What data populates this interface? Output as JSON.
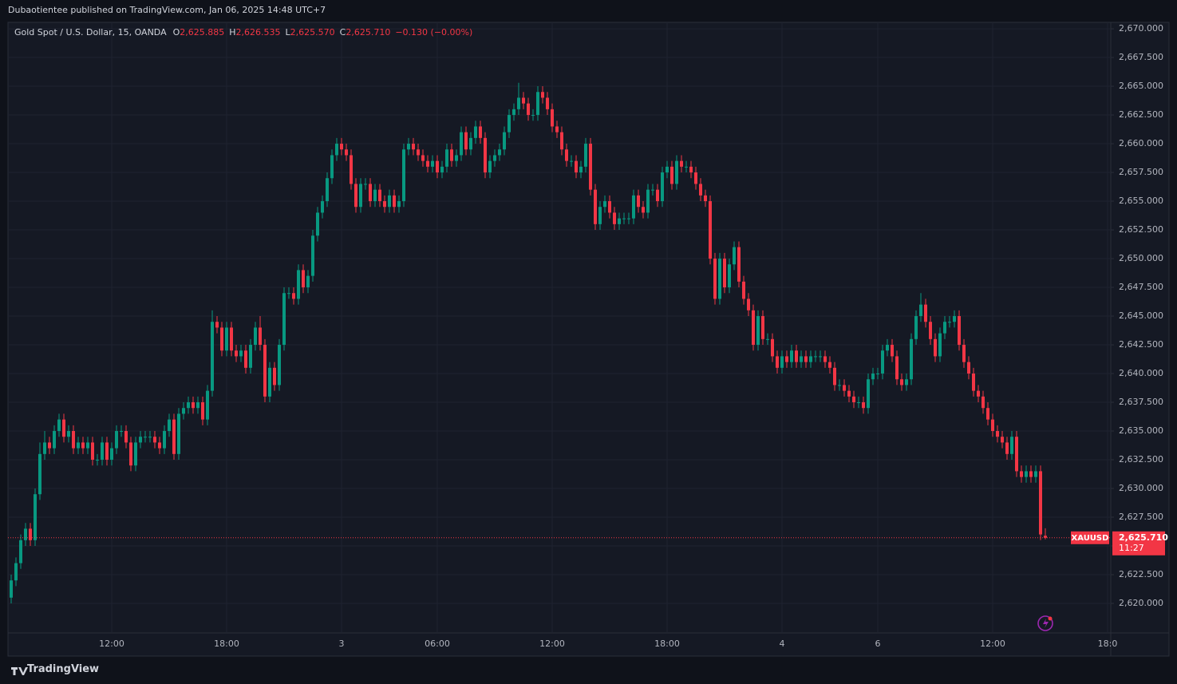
{
  "header": {
    "publisher": "Dubaotientee published on TradingView.com, Jan 06, 2025 14:48 UTC+7"
  },
  "chart_data": {
    "type": "candlestick",
    "title": "Gold Spot / U.S. Dollar, 15, OANDA",
    "ohlc_legend": [
      {
        "key": "O",
        "value": "2,625.885"
      },
      {
        "key": "H",
        "value": "2,626.535"
      },
      {
        "key": "L",
        "value": "2,625.570"
      },
      {
        "key": "C",
        "value": "2,625.710"
      }
    ],
    "change": "−0.130 (−0.00%)",
    "categories": [
      null,
      null,
      null,
      null,
      null,
      null,
      null,
      null,
      null,
      null,
      null,
      null,
      null,
      null,
      null,
      null,
      null,
      null,
      null,
      null,
      null,
      "12:00",
      null,
      null,
      null,
      null,
      null,
      null,
      null,
      null,
      null,
      null,
      null,
      null,
      null,
      null,
      null,
      null,
      null,
      null,
      null,
      null,
      null,
      null,
      null,
      "18:00",
      null,
      null,
      null,
      null,
      null,
      null,
      null,
      null,
      null,
      null,
      null,
      null,
      null,
      null,
      null,
      null,
      null,
      null,
      null,
      null,
      null,
      null,
      null,
      "3",
      null,
      null,
      null,
      null,
      null,
      null,
      null,
      null,
      null,
      null,
      null,
      null,
      null,
      null,
      null,
      null,
      null,
      null,
      null,
      "06:00",
      null,
      null,
      null,
      null,
      null,
      null,
      null,
      null,
      null,
      null,
      null,
      null,
      null,
      null,
      null,
      null,
      null,
      null,
      null,
      null,
      null,
      null,
      null,
      "12:00",
      null,
      null,
      null,
      null,
      null,
      null,
      null,
      null,
      null,
      null,
      null,
      null,
      null,
      null,
      null,
      null,
      null,
      null,
      null,
      null,
      null,
      null,
      null,
      "18:00",
      null,
      null,
      null,
      null,
      null,
      null,
      null,
      null,
      null,
      null,
      null,
      null,
      null,
      null,
      null,
      null,
      null,
      null,
      null,
      null,
      null,
      null,
      null,
      "4",
      null,
      null,
      null,
      null,
      null,
      null,
      null,
      null,
      null,
      null,
      null,
      null,
      null,
      null,
      null,
      null,
      null,
      null,
      null,
      "6",
      null,
      null,
      null,
      null,
      null,
      null,
      null,
      null,
      null,
      null,
      null,
      null,
      null,
      null,
      null,
      null,
      null,
      null,
      null,
      null,
      null,
      null,
      null,
      "12:00",
      null,
      null,
      null,
      null,
      null,
      null,
      null,
      null,
      null,
      null,
      null,
      null,
      null,
      null,
      null,
      null,
      null,
      null,
      null,
      null,
      null,
      null,
      null,
      "18:0"
    ],
    "open": [
      2620.5,
      2622.0,
      2623.5,
      2625.5,
      2626.5,
      2625.5,
      2629.5,
      2633.0,
      2634.0,
      2633.5,
      2635.0,
      2636.0,
      2634.5,
      2635.0,
      2633.5,
      2634.0,
      2633.5,
      2634.0,
      2632.5,
      2632.5,
      2634.0,
      2632.5,
      2633.5,
      2635.0,
      2635.0,
      2634.0,
      2632.0,
      2634.0,
      2634.5,
      2634.5,
      2634.5,
      2634.0,
      2633.5,
      2635.0,
      2636.0,
      2633.0,
      2636.5,
      2637.0,
      2637.5,
      2637.0,
      2637.5,
      2636.0,
      2638.5,
      2644.5,
      2644.0,
      2642.0,
      2644.0,
      2642.0,
      2641.5,
      2642.0,
      2640.5,
      2642.5,
      2644.0,
      2642.5,
      2638.0,
      2640.5,
      2639.0,
      2642.5,
      2647.0,
      2647.0,
      2646.5,
      2649.0,
      2647.5,
      2648.5,
      2652.0,
      2654.0,
      2655.0,
      2657.0,
      2659.0,
      2660.0,
      2659.5,
      2659.0,
      2656.5,
      2654.5,
      2656.5,
      2656.5,
      2655.0,
      2656.0,
      2655.0,
      2654.5,
      2655.5,
      2654.5,
      2655.0,
      2659.5,
      2660.0,
      2659.5,
      2659.0,
      2658.5,
      2658.0,
      2658.5,
      2657.5,
      2658.0,
      2659.5,
      2658.5,
      2659.0,
      2661.0,
      2659.5,
      2660.5,
      2661.5,
      2660.5,
      2657.5,
      2658.5,
      2659.0,
      2659.5,
      2661.0,
      2662.5,
      2663.0,
      2664.0,
      2663.5,
      2662.5,
      2662.5,
      2664.5,
      2664.0,
      2663.0,
      2661.5,
      2661.0,
      2659.5,
      2658.5,
      2658.5,
      2657.5,
      2658.0,
      2660.0,
      2656.0,
      2653.0,
      2654.5,
      2655.0,
      2654.0,
      2653.0,
      2653.5,
      2653.5,
      2653.5,
      2655.5,
      2654.5,
      2654.0,
      2656.0,
      2656.0,
      2655.0,
      2657.5,
      2658.0,
      2656.5,
      2658.5,
      2658.0,
      2658.0,
      2657.5,
      2656.5,
      2655.5,
      2655.0,
      2650.0,
      2646.5,
      2650.0,
      2647.5,
      2649.5,
      2651.0,
      2648.0,
      2646.5,
      2645.5,
      2642.5,
      2645.0,
      2643.0,
      2643.0,
      2641.5,
      2640.5,
      2641.5,
      2641.0,
      2642.0,
      2641.0,
      2641.5,
      2641.0,
      2641.5,
      2641.5,
      2641.5,
      2641.0,
      2640.5,
      2639.0,
      2639.0,
      2638.5,
      2638.0,
      2637.5,
      2637.5,
      2637.0,
      2639.5,
      2640.0,
      2640.0,
      2642.0,
      2642.5,
      2641.5,
      2639.5,
      2639.0,
      2639.5,
      2643.0,
      2645.0,
      2646.0,
      2644.5,
      2643.0,
      2641.5,
      2643.5,
      2644.5,
      2644.5,
      2645.0,
      2642.5,
      2641.0,
      2640.0,
      2638.5,
      2638.0,
      2637.0,
      2636.0,
      2635.0,
      2634.5,
      2634.0,
      2633.0,
      2634.5,
      2631.5,
      2631.0,
      2631.5,
      2631.0,
      2631.5,
      2625.885,
      null,
      null,
      null,
      null,
      null,
      null,
      null,
      null,
      null,
      null,
      null,
      null,
      null
    ],
    "high": [
      2622.5,
      2624.0,
      2626.0,
      2627.0,
      2627.0,
      2630.0,
      2634.0,
      2635.0,
      2634.5,
      2635.5,
      2636.5,
      2636.5,
      2635.5,
      2635.5,
      2634.5,
      2634.5,
      2634.5,
      2634.5,
      2633.0,
      2634.5,
      2634.5,
      2634.0,
      2635.5,
      2635.5,
      2635.5,
      2634.5,
      2634.5,
      2635.0,
      2635.0,
      2635.0,
      2635.0,
      2634.5,
      2635.5,
      2636.5,
      2636.5,
      2637.0,
      2637.5,
      2638.0,
      2638.0,
      2638.0,
      2638.0,
      2639.0,
      2645.5,
      2645.0,
      2644.5,
      2644.5,
      2644.5,
      2642.5,
      2642.5,
      2642.5,
      2643.0,
      2644.5,
      2645.0,
      2643.0,
      2641.0,
      2641.0,
      2643.0,
      2647.5,
      2647.5,
      2647.5,
      2649.5,
      2649.5,
      2649.0,
      2652.5,
      2654.5,
      2655.5,
      2657.5,
      2659.5,
      2660.5,
      2660.5,
      2660.0,
      2659.5,
      2657.0,
      2657.0,
      2657.0,
      2657.0,
      2656.5,
      2656.5,
      2655.5,
      2656.0,
      2656.0,
      2655.5,
      2660.0,
      2660.5,
      2660.5,
      2660.0,
      2659.5,
      2659.0,
      2659.0,
      2659.0,
      2658.5,
      2660.0,
      2660.0,
      2659.5,
      2661.5,
      2661.5,
      2661.0,
      2662.0,
      2662.0,
      2661.0,
      2659.0,
      2659.5,
      2660.0,
      2661.5,
      2663.0,
      2663.5,
      2665.3,
      2664.5,
      2664.0,
      2663.0,
      2665.0,
      2665.0,
      2664.5,
      2663.5,
      2662.0,
      2661.5,
      2660.0,
      2659.0,
      2659.0,
      2658.5,
      2660.5,
      2660.5,
      2656.5,
      2655.0,
      2655.5,
      2655.5,
      2654.5,
      2654.0,
      2654.0,
      2654.0,
      2656.0,
      2656.0,
      2655.0,
      2656.5,
      2656.5,
      2656.5,
      2658.0,
      2658.5,
      2658.5,
      2659.0,
      2659.0,
      2658.5,
      2658.5,
      2658.0,
      2657.0,
      2656.0,
      2655.5,
      2650.5,
      2650.5,
      2650.5,
      2650.0,
      2651.5,
      2651.5,
      2648.5,
      2647.0,
      2646.0,
      2645.5,
      2645.5,
      2643.5,
      2643.5,
      2642.0,
      2642.0,
      2642.0,
      2642.5,
      2642.5,
      2642.0,
      2642.0,
      2642.0,
      2642.0,
      2642.0,
      2642.0,
      2641.5,
      2641.0,
      2639.5,
      2639.5,
      2639.0,
      2638.5,
      2638.0,
      2638.0,
      2640.0,
      2640.5,
      2640.5,
      2642.5,
      2643.0,
      2643.0,
      2642.0,
      2640.0,
      2640.0,
      2643.5,
      2645.5,
      2647.0,
      2646.5,
      2645.0,
      2643.5,
      2644.0,
      2645.0,
      2645.0,
      2645.5,
      2645.5,
      2643.0,
      2641.5,
      2640.5,
      2639.0,
      2638.5,
      2637.5,
      2636.5,
      2635.5,
      2635.0,
      2634.5,
      2635.0,
      2635.0,
      2632.0,
      2632.0,
      2632.0,
      2632.0,
      2632.0,
      2626.535,
      null,
      null,
      null,
      null,
      null,
      null,
      null,
      null,
      null,
      null,
      null,
      null,
      null
    ],
    "low": [
      2620.0,
      2621.5,
      2623.0,
      2625.0,
      2625.0,
      2625.0,
      2629.0,
      2632.5,
      2633.0,
      2633.0,
      2634.5,
      2634.0,
      2634.0,
      2633.0,
      2633.0,
      2633.0,
      2633.0,
      2632.0,
      2632.0,
      2632.0,
      2632.0,
      2632.0,
      2633.0,
      2634.5,
      2633.5,
      2631.5,
      2631.5,
      2633.5,
      2634.0,
      2634.0,
      2633.5,
      2633.0,
      2633.0,
      2634.5,
      2632.5,
      2632.5,
      2636.0,
      2636.5,
      2636.5,
      2636.5,
      2635.5,
      2635.5,
      2638.0,
      2643.5,
      2641.5,
      2641.5,
      2641.5,
      2641.0,
      2641.0,
      2640.0,
      2640.0,
      2642.0,
      2642.0,
      2637.5,
      2637.5,
      2638.5,
      2638.5,
      2642.0,
      2646.5,
      2646.0,
      2646.0,
      2647.0,
      2647.0,
      2648.0,
      2651.5,
      2653.5,
      2654.5,
      2656.5,
      2658.5,
      2659.0,
      2658.5,
      2656.0,
      2654.0,
      2654.0,
      2656.0,
      2654.5,
      2654.5,
      2654.5,
      2654.0,
      2654.0,
      2654.0,
      2654.0,
      2654.5,
      2659.0,
      2659.0,
      2658.5,
      2658.0,
      2657.5,
      2657.5,
      2657.0,
      2657.0,
      2657.5,
      2658.0,
      2658.0,
      2658.5,
      2659.0,
      2659.0,
      2660.0,
      2660.0,
      2657.0,
      2657.0,
      2658.0,
      2658.5,
      2659.0,
      2660.5,
      2662.0,
      2662.5,
      2663.0,
      2662.0,
      2662.0,
      2662.0,
      2663.5,
      2662.5,
      2661.0,
      2660.5,
      2659.0,
      2658.0,
      2658.0,
      2657.0,
      2657.0,
      2657.5,
      2655.5,
      2652.5,
      2652.5,
      2654.0,
      2653.5,
      2652.5,
      2652.5,
      2653.0,
      2653.0,
      2653.0,
      2654.0,
      2653.5,
      2653.5,
      2655.5,
      2654.5,
      2654.5,
      2657.0,
      2656.0,
      2656.0,
      2657.5,
      2657.5,
      2657.0,
      2656.0,
      2655.0,
      2654.5,
      2649.5,
      2646.0,
      2646.0,
      2647.0,
      2647.0,
      2649.0,
      2647.5,
      2646.0,
      2645.0,
      2642.0,
      2642.0,
      2642.5,
      2642.5,
      2641.0,
      2640.0,
      2640.0,
      2640.5,
      2640.5,
      2640.5,
      2640.5,
      2640.5,
      2640.5,
      2641.0,
      2641.0,
      2640.5,
      2640.0,
      2638.5,
      2638.5,
      2638.0,
      2637.5,
      2637.0,
      2637.0,
      2636.5,
      2636.5,
      2639.0,
      2639.5,
      2639.5,
      2641.5,
      2641.0,
      2639.0,
      2638.5,
      2638.5,
      2639.0,
      2642.5,
      2644.5,
      2644.0,
      2642.5,
      2641.0,
      2641.0,
      2643.0,
      2644.0,
      2644.0,
      2642.0,
      2640.5,
      2639.5,
      2638.0,
      2637.5,
      2636.5,
      2635.5,
      2634.5,
      2634.0,
      2633.5,
      2632.5,
      2632.5,
      2631.0,
      2630.5,
      2630.5,
      2630.5,
      2630.5,
      2625.5,
      2625.57,
      null,
      null,
      null,
      null,
      null,
      null,
      null,
      null,
      null,
      null,
      null,
      null,
      null
    ],
    "close": [
      2622.0,
      2623.5,
      2625.5,
      2626.5,
      2625.5,
      2629.5,
      2633.0,
      2634.0,
      2633.5,
      2635.0,
      2636.0,
      2634.5,
      2635.0,
      2633.5,
      2634.0,
      2633.5,
      2634.0,
      2632.5,
      2632.5,
      2634.0,
      2632.5,
      2633.5,
      2635.0,
      2635.0,
      2634.0,
      2632.0,
      2634.0,
      2634.5,
      2634.5,
      2634.5,
      2634.0,
      2633.5,
      2635.0,
      2636.0,
      2633.0,
      2636.5,
      2637.0,
      2637.5,
      2637.0,
      2637.5,
      2636.0,
      2638.5,
      2644.5,
      2644.0,
      2642.0,
      2644.0,
      2642.0,
      2641.5,
      2642.0,
      2640.5,
      2642.5,
      2644.0,
      2642.5,
      2638.0,
      2640.5,
      2639.0,
      2642.5,
      2647.0,
      2647.0,
      2646.5,
      2649.0,
      2647.5,
      2648.5,
      2652.0,
      2654.0,
      2655.0,
      2657.0,
      2659.0,
      2660.0,
      2659.5,
      2659.0,
      2656.5,
      2654.5,
      2656.5,
      2656.5,
      2655.0,
      2656.0,
      2655.0,
      2654.5,
      2655.5,
      2654.5,
      2655.0,
      2659.5,
      2660.0,
      2659.5,
      2659.0,
      2658.5,
      2658.0,
      2658.5,
      2657.5,
      2658.0,
      2659.5,
      2658.5,
      2659.0,
      2661.0,
      2659.5,
      2660.5,
      2661.5,
      2660.5,
      2657.5,
      2658.5,
      2659.0,
      2659.5,
      2661.0,
      2662.5,
      2663.0,
      2664.0,
      2663.5,
      2662.5,
      2662.5,
      2664.5,
      2664.0,
      2663.0,
      2661.5,
      2661.0,
      2659.5,
      2658.5,
      2658.5,
      2657.5,
      2658.0,
      2660.0,
      2656.0,
      2653.0,
      2654.5,
      2655.0,
      2654.0,
      2653.0,
      2653.5,
      2653.5,
      2653.5,
      2655.5,
      2654.5,
      2654.0,
      2656.0,
      2656.0,
      2655.0,
      2657.5,
      2658.0,
      2656.5,
      2658.5,
      2658.0,
      2658.0,
      2657.5,
      2656.5,
      2655.5,
      2655.0,
      2650.0,
      2646.5,
      2650.0,
      2647.5,
      2649.5,
      2651.0,
      2648.0,
      2646.5,
      2645.5,
      2642.5,
      2645.0,
      2643.0,
      2643.0,
      2641.5,
      2640.5,
      2641.5,
      2641.0,
      2642.0,
      2641.0,
      2641.5,
      2641.0,
      2641.5,
      2641.5,
      2641.5,
      2641.0,
      2640.5,
      2639.0,
      2639.0,
      2638.5,
      2638.0,
      2637.5,
      2637.5,
      2637.0,
      2639.5,
      2640.0,
      2640.0,
      2642.0,
      2642.5,
      2641.5,
      2639.5,
      2639.0,
      2639.5,
      2643.0,
      2645.0,
      2646.0,
      2644.5,
      2643.0,
      2641.5,
      2643.5,
      2644.5,
      2644.5,
      2645.0,
      2642.5,
      2641.0,
      2640.0,
      2638.5,
      2638.0,
      2637.0,
      2636.0,
      2635.0,
      2634.5,
      2634.0,
      2633.0,
      2634.5,
      2631.5,
      2631.0,
      2631.5,
      2631.0,
      2631.5,
      2626.0,
      2625.71,
      null,
      null,
      null,
      null,
      null,
      null,
      null,
      null,
      null,
      null,
      null,
      null,
      null
    ],
    "up_color": "#089981",
    "down_color": "#f23645",
    "ylim": [
      2617.43,
      2670.56
    ],
    "yticks": [
      {
        "value": 2670,
        "label": "2,670.000"
      },
      {
        "value": 2667.5,
        "label": "2,667.500"
      },
      {
        "value": 2665,
        "label": "2,665.000"
      },
      {
        "value": 2662.5,
        "label": "2,662.500"
      },
      {
        "value": 2660,
        "label": "2,660.000"
      },
      {
        "value": 2657.5,
        "label": "2,657.500"
      },
      {
        "value": 2655,
        "label": "2,655.000"
      },
      {
        "value": 2652.5,
        "label": "2,652.500"
      },
      {
        "value": 2650,
        "label": "2,650.000"
      },
      {
        "value": 2647.5,
        "label": "2,647.500"
      },
      {
        "value": 2645,
        "label": "2,645.000"
      },
      {
        "value": 2642.5,
        "label": "2,642.500"
      },
      {
        "value": 2640,
        "label": "2,640.000"
      },
      {
        "value": 2637.5,
        "label": "2,637.500"
      },
      {
        "value": 2635,
        "label": "2,635.000"
      },
      {
        "value": 2632.5,
        "label": "2,632.500"
      },
      {
        "value": 2630,
        "label": "2,630.000"
      },
      {
        "value": 2627.5,
        "label": "2,627.500"
      },
      {
        "value": 2625,
        "label": "2,625.000"
      },
      {
        "value": 2622.5,
        "label": "2,622.500"
      },
      {
        "value": 2620,
        "label": "2,620.000"
      }
    ],
    "grid": true,
    "symbol_tag": "XAUUSD",
    "last_price_label": "2,625.710",
    "countdown": "11:27"
  },
  "footer": {
    "brand": "TradingView"
  }
}
